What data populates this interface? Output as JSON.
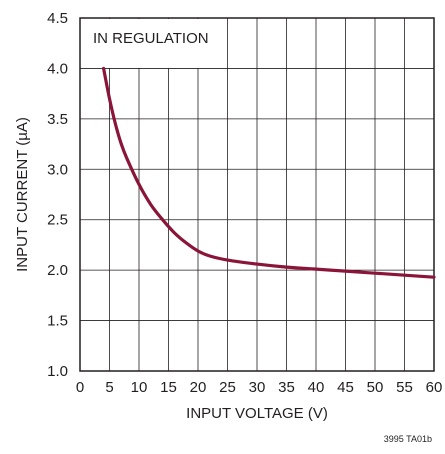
{
  "chart_data": {
    "type": "line",
    "annotation": "IN REGULATION",
    "xlabel": "INPUT VOLTAGE (V)",
    "ylabel": "INPUT CURRENT (µA)",
    "xlim": [
      0,
      60
    ],
    "ylim": [
      1.0,
      4.5
    ],
    "xticks": [
      0,
      5,
      10,
      15,
      20,
      25,
      30,
      35,
      40,
      45,
      50,
      55,
      60
    ],
    "yticks": [
      "1.0",
      "1.5",
      "2.0",
      "2.5",
      "3.0",
      "3.5",
      "4.0",
      "4.5"
    ],
    "grid": true,
    "figure_id": "3995 TA01b",
    "series": [
      {
        "color": "#8a1538",
        "x": [
          4,
          5,
          6,
          7,
          8,
          10,
          12,
          14,
          16,
          18,
          20,
          22,
          25,
          30,
          35,
          40,
          45,
          50,
          55,
          60
        ],
        "y": [
          4.0,
          3.7,
          3.45,
          3.25,
          3.1,
          2.85,
          2.65,
          2.5,
          2.37,
          2.27,
          2.19,
          2.14,
          2.1,
          2.06,
          2.03,
          2.01,
          1.99,
          1.97,
          1.95,
          1.93
        ]
      }
    ]
  }
}
